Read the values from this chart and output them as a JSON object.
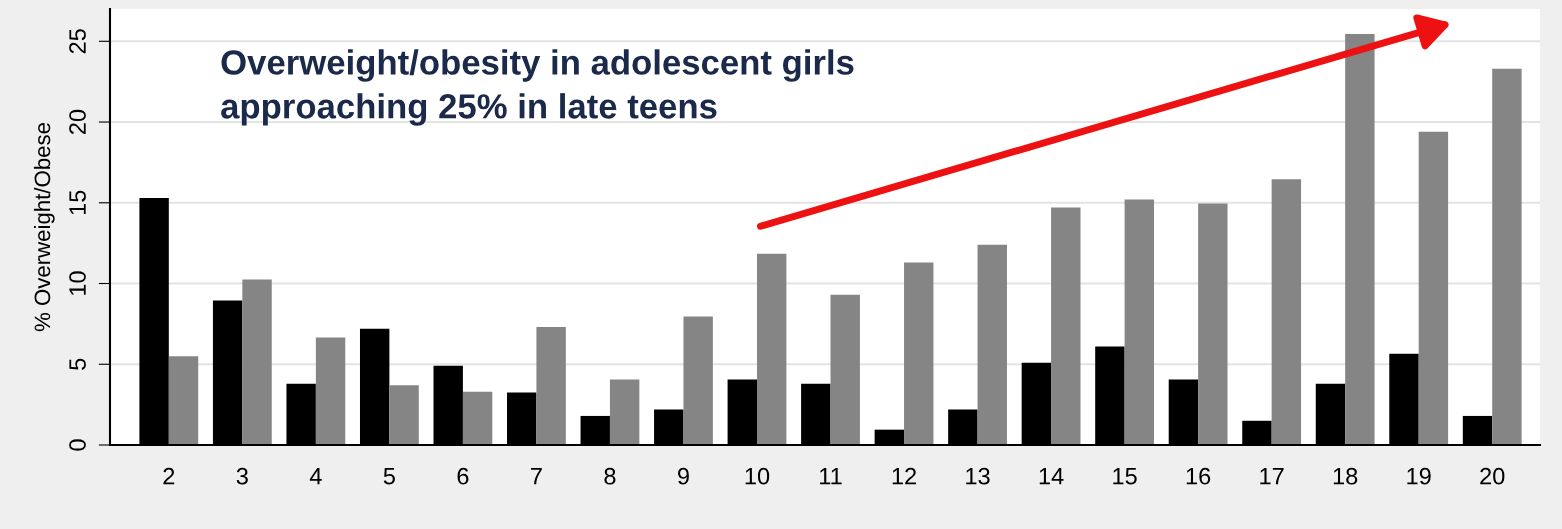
{
  "chart_data": {
    "type": "bar",
    "ylabel": "% Overweight/Obese",
    "annotations": [
      "Overweight/obesity in adolescent girls\napproaching 25% in late teens"
    ],
    "categories": [
      "2",
      "3",
      "4",
      "5",
      "6",
      "7",
      "8",
      "9",
      "10",
      "11",
      "12",
      "13",
      "14",
      "15",
      "16",
      "17",
      "18",
      "19",
      "20"
    ],
    "series": [
      {
        "color": "#000000",
        "values": [
          15.3,
          8.95,
          3.8,
          7.2,
          4.9,
          3.25,
          1.8,
          2.2,
          4.05,
          3.8,
          0.95,
          2.2,
          5.1,
          6.1,
          4.05,
          1.5,
          3.8,
          5.65,
          1.8
        ]
      },
      {
        "color": "#858585",
        "values": [
          5.5,
          10.25,
          6.65,
          3.7,
          3.3,
          7.3,
          4.05,
          7.95,
          11.85,
          9.3,
          11.3,
          12.4,
          14.7,
          15.2,
          14.95,
          16.45,
          25.45,
          19.4,
          23.3
        ]
      }
    ],
    "ylim": [
      0,
      27
    ],
    "yticks": [
      0,
      5,
      10,
      15,
      20,
      25
    ],
    "grid": "y"
  }
}
